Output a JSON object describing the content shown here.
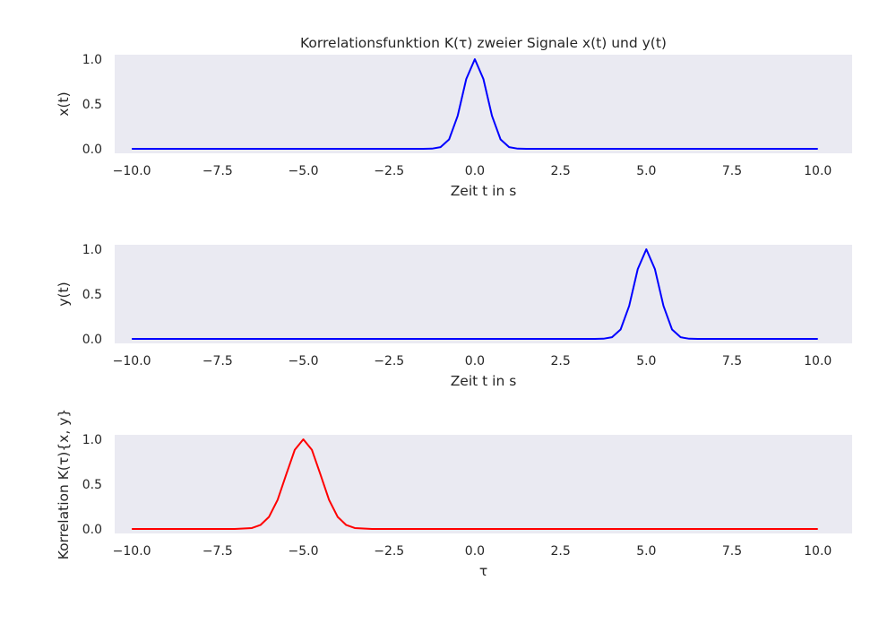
{
  "chart_data": [
    {
      "type": "line",
      "title": "Korrelationsfunktion K(τ) zweier Signale x(t) und y(t)",
      "xlabel": "Zeit t in s",
      "ylabel": "x(t)",
      "xlim": [
        -10.5,
        11.0
      ],
      "ylim": [
        -0.05,
        1.05
      ],
      "xticks": [
        "−10.0",
        "−7.5",
        "−5.0",
        "−2.5",
        "0.0",
        "2.5",
        "5.0",
        "7.5",
        "10.0"
      ],
      "yticks": [
        "0.0",
        "0.5",
        "1.0"
      ],
      "grid": false,
      "series": [
        {
          "color": "#0000ff",
          "x": [
            -10,
            -2,
            -1.5,
            -1.25,
            -1,
            -0.75,
            -0.5,
            -0.25,
            0,
            0.25,
            0.5,
            0.75,
            1,
            1.25,
            1.5,
            2,
            10
          ],
          "y": [
            0,
            0,
            0.0001,
            0.002,
            0.0183,
            0.105,
            0.3679,
            0.7788,
            1,
            0.7788,
            0.3679,
            0.105,
            0.0183,
            0.002,
            0.0001,
            0,
            0
          ]
        }
      ]
    },
    {
      "type": "line",
      "xlabel": "Zeit t in s",
      "ylabel": "y(t)",
      "xlim": [
        -10.5,
        11.0
      ],
      "ylim": [
        -0.05,
        1.05
      ],
      "xticks": [
        "−10.0",
        "−7.5",
        "−5.0",
        "−2.5",
        "0.0",
        "2.5",
        "5.0",
        "7.5",
        "10.0"
      ],
      "yticks": [
        "0.0",
        "0.5",
        "1.0"
      ],
      "grid": false,
      "series": [
        {
          "color": "#0000ff",
          "x": [
            -10,
            3,
            3.5,
            3.75,
            4,
            4.25,
            4.5,
            4.75,
            5,
            5.25,
            5.5,
            5.75,
            6,
            6.25,
            6.5,
            7,
            10
          ],
          "y": [
            0,
            0,
            0.0001,
            0.002,
            0.0183,
            0.105,
            0.3679,
            0.7788,
            1,
            0.7788,
            0.3679,
            0.105,
            0.0183,
            0.002,
            0.0001,
            0,
            0
          ]
        }
      ]
    },
    {
      "type": "line",
      "xlabel": "τ",
      "ylabel": "Korrelation K(τ){x, y}",
      "xlim": [
        -10.5,
        11.0
      ],
      "ylim": [
        -0.05,
        1.05
      ],
      "xticks": [
        "−10.0",
        "−7.5",
        "−5.0",
        "−2.5",
        "0.0",
        "2.5",
        "5.0",
        "7.5",
        "10.0"
      ],
      "yticks": [
        "0.0",
        "0.5",
        "1.0"
      ],
      "grid": false,
      "series": [
        {
          "color": "#ff0000",
          "x": [
            -10,
            -7,
            -6.5,
            -6.25,
            -6,
            -5.75,
            -5.5,
            -5.25,
            -5,
            -4.75,
            -4.5,
            -4.25,
            -4,
            -3.75,
            -3.5,
            -3,
            10
          ],
          "y": [
            0,
            0,
            0.0106,
            0.0439,
            0.1353,
            0.3247,
            0.6065,
            0.8825,
            1,
            0.8825,
            0.6065,
            0.3247,
            0.1353,
            0.0439,
            0.0106,
            0,
            0
          ]
        }
      ]
    }
  ]
}
